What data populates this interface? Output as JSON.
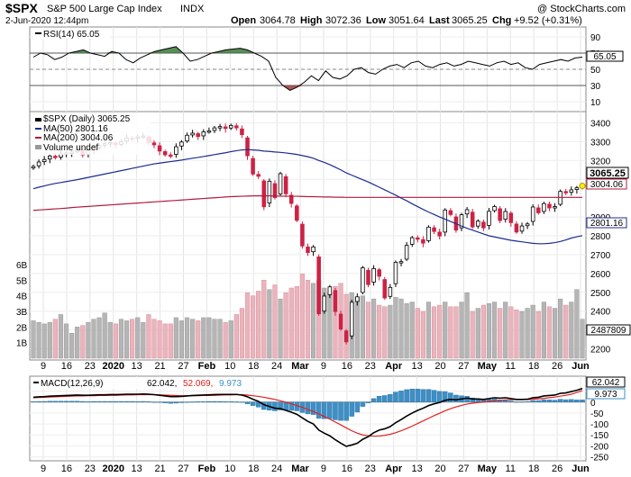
{
  "header": {
    "symbol": "$SPX",
    "name": "S&P 500 Large Cap Index",
    "exchange": "INDX",
    "watermark": "@ StockCharts.com",
    "datetime": "2-Jun-2020 12:44pm",
    "open_label": "Open",
    "open": "3064.78",
    "high_label": "High",
    "high": "3072.36",
    "low_label": "Low",
    "low": "3051.64",
    "last_label": "Last",
    "last": "3065.25",
    "chg_label": "Chg",
    "chg": "+9.52 (+0.31%)"
  },
  "colors": {
    "up": "#000000",
    "down": "#cc2244",
    "ma50": "#1a2c8f",
    "ma200": "#b01c3c",
    "macd": "#000000",
    "signal": "#e02020",
    "hist": "#3d8fc6",
    "rsi_above": "#3a7a3a",
    "rsi_below": "#9a3b3b"
  },
  "chart_data": [
    {
      "type": "line",
      "title": "RSI(14) 65.05",
      "legend": [
        {
          "label": "RSI(14) 65.05"
        }
      ],
      "ylim": [
        0,
        100
      ],
      "yticks": [
        90,
        70,
        50,
        30,
        10
      ],
      "levels": [
        70,
        50,
        30
      ],
      "last_value": "65.05",
      "series": [
        {
          "name": "RSI(14)",
          "values": [
            65,
            70,
            68,
            62,
            65,
            70,
            72,
            74,
            70,
            68,
            66,
            72,
            70,
            62,
            58,
            64,
            68,
            72,
            74,
            76,
            78,
            70,
            60,
            62,
            66,
            70,
            72,
            74,
            75,
            76,
            74,
            70,
            66,
            60,
            40,
            30,
            24,
            28,
            34,
            42,
            36,
            48,
            40,
            38,
            42,
            50,
            52,
            46,
            44,
            50,
            54,
            56,
            52,
            58,
            60,
            54,
            52,
            56,
            58,
            54,
            56,
            60,
            58,
            56,
            54,
            58,
            60,
            56,
            58,
            52,
            50,
            56,
            58,
            60,
            62,
            60,
            64,
            65
          ]
        }
      ]
    },
    {
      "type": "candlestick",
      "title": "$SPX (Daily) 3065.25",
      "legend": [
        {
          "label": "$SPX (Daily) 3065.25"
        },
        {
          "label": "MA(50) 2801.16"
        },
        {
          "label": "MA(200) 3004.06"
        },
        {
          "label": "Volume undef"
        }
      ],
      "ylim": [
        2150,
        3450
      ],
      "yticks": [
        3400,
        3300,
        3200,
        3100,
        2900,
        2800,
        2700,
        2600,
        2500,
        2400,
        2300,
        2200
      ],
      "volume_ticks": [
        "6B",
        "5B",
        "4B",
        "3B",
        "2B",
        "1B"
      ],
      "volume_scale": [
        0,
        7.5
      ],
      "x_tick_labels": [
        "9",
        "16",
        "23",
        "2020",
        "13",
        "21",
        "27",
        "Feb",
        "10",
        "18",
        "24",
        "Mar",
        "9",
        "16",
        "23",
        "Apr",
        "13",
        "20",
        "27",
        "May",
        "11",
        "18",
        "26",
        "Jun"
      ],
      "last_price": "3065.25",
      "ma200_last": "3004.06",
      "ma50_last": "2801.16",
      "volume_last": "2487809",
      "series": [
        {
          "name": "Close",
          "values": [
            3168,
            3192,
            3205,
            3224,
            3215,
            3235,
            3240,
            3245,
            3258,
            3230,
            3255,
            3265,
            3280,
            3289,
            3295,
            3283,
            3300,
            3320,
            3316,
            3325,
            3330,
            3295,
            3283,
            3250,
            3230,
            3225,
            3273,
            3298,
            3334,
            3345,
            3327,
            3352,
            3357,
            3373,
            3380,
            3370,
            3386,
            3373,
            3337,
            3225,
            3128,
            3116,
            2954,
            3090,
            3003,
            3130,
            3023,
            2972,
            2882,
            2746,
            2711,
            2741,
            2386,
            2480,
            2529,
            2398,
            2305,
            2237,
            2447,
            2476,
            2630,
            2541,
            2626,
            2585,
            2470,
            2526,
            2659,
            2663,
            2749,
            2790,
            2783,
            2761,
            2846,
            2823,
            2799,
            2937,
            2913,
            2830,
            2912,
            2939,
            2847,
            2878,
            2842,
            2930,
            2955,
            2881,
            2929,
            2870,
            2820,
            2852,
            2863,
            2953,
            2922,
            2971,
            2948,
            2955,
            3036,
            3029,
            3044,
            3055,
            3065
          ]
        },
        {
          "name": "MA(50)",
          "values": [
            3050,
            3058,
            3065,
            3072,
            3078,
            3083,
            3088,
            3093,
            3098,
            3104,
            3110,
            3116,
            3122,
            3128,
            3134,
            3140,
            3146,
            3152,
            3158,
            3164,
            3170,
            3176,
            3182,
            3186,
            3190,
            3194,
            3198,
            3202,
            3207,
            3212,
            3216,
            3221,
            3226,
            3231,
            3236,
            3241,
            3247,
            3252,
            3256,
            3258,
            3256,
            3254,
            3250,
            3248,
            3245,
            3243,
            3240,
            3236,
            3232,
            3226,
            3220,
            3212,
            3200,
            3190,
            3178,
            3164,
            3150,
            3134,
            3122,
            3110,
            3098,
            3086,
            3072,
            3058,
            3044,
            3030,
            3016,
            3000,
            2986,
            2970,
            2955,
            2940,
            2926,
            2913,
            2900,
            2888,
            2876,
            2864,
            2852,
            2840,
            2830,
            2820,
            2810,
            2800,
            2794,
            2788,
            2782,
            2776,
            2772,
            2768,
            2764,
            2760,
            2758,
            2758,
            2760,
            2764,
            2770,
            2778,
            2788,
            2795,
            2801
          ]
        },
        {
          "name": "MA(200)",
          "values": [
            2935,
            2937,
            2939,
            2941,
            2943,
            2945,
            2947,
            2950,
            2952,
            2954,
            2956,
            2958,
            2960,
            2962,
            2964,
            2966,
            2968,
            2970,
            2972,
            2974,
            2976,
            2978,
            2980,
            2982,
            2984,
            2986,
            2988,
            2990,
            2992,
            2994,
            2996,
            2998,
            3000,
            3002,
            3004,
            3006,
            3008,
            3009,
            3010,
            3011,
            3012,
            3012,
            3012,
            3012,
            3011,
            3011,
            3010,
            3010,
            3010,
            3009,
            3008,
            3008,
            3007,
            3006,
            3006,
            3005,
            3005,
            3004,
            3004,
            3004,
            3004,
            3004,
            3004,
            3004,
            3004,
            3004,
            3004,
            3004,
            3004,
            3004,
            3004,
            3004,
            3004,
            3004,
            3004,
            3004,
            3004,
            3004,
            3004,
            3004,
            3004,
            3004,
            3004,
            3004,
            3004,
            3004,
            3004,
            3004,
            3004,
            3004,
            3004,
            3004,
            3004,
            3004,
            3004,
            3004,
            3004,
            3004,
            3004,
            3004,
            3004
          ]
        },
        {
          "name": "Volume (B)",
          "values": [
            2.4,
            2.3,
            2.2,
            2.3,
            2.5,
            2.8,
            2.2,
            1.6,
            2.0,
            2.1,
            2.3,
            2.5,
            2.6,
            2.9,
            2.3,
            2.2,
            2.5,
            2.4,
            2.5,
            2.6,
            2.3,
            2.8,
            2.5,
            2.4,
            2.2,
            2.2,
            2.6,
            2.4,
            2.6,
            2.5,
            2.4,
            2.6,
            2.6,
            2.5,
            2.5,
            2.3,
            2.4,
            2.8,
            3.2,
            4.2,
            4.0,
            4.3,
            5.0,
            4.4,
            4.7,
            3.8,
            4.2,
            4.5,
            4.6,
            5.4,
            5.0,
            4.8,
            5.0,
            4.5,
            4.2,
            4.6,
            4.8,
            4.1,
            4.2,
            3.9,
            4.0,
            3.6,
            3.8,
            3.4,
            3.3,
            3.4,
            3.9,
            3.8,
            3.5,
            3.6,
            3.2,
            3.0,
            3.6,
            3.3,
            3.4,
            3.6,
            3.3,
            3.3,
            3.6,
            4.2,
            3.0,
            3.2,
            3.4,
            3.5,
            3.6,
            3.2,
            3.6,
            3.3,
            3.1,
            3.0,
            3.2,
            3.4,
            3.0,
            3.6,
            3.3,
            3.2,
            3.8,
            3.4,
            3.6,
            4.4,
            2.5
          ]
        }
      ]
    },
    {
      "type": "line",
      "title": "MACD(12,26,9) 62.042, 52.069, 9.973",
      "legend": [
        {
          "label": "MACD(12,26,9)"
        },
        {
          "label": "62.042,"
        },
        {
          "label": "52.069,"
        },
        {
          "label": "9.973"
        }
      ],
      "ylim": [
        -260,
        110
      ],
      "yticks": [
        50,
        0,
        -50,
        -100,
        -150,
        -200,
        -250
      ],
      "macd_last": "62.042",
      "signal_last": "52.069",
      "hist_last": "9.973",
      "series": [
        {
          "name": "MACD",
          "values": [
            22,
            24,
            25,
            27,
            28,
            29,
            30,
            31,
            32,
            31,
            31,
            32,
            33,
            33,
            34,
            34,
            35,
            36,
            36,
            36,
            37,
            36,
            34,
            31,
            28,
            25,
            25,
            26,
            28,
            30,
            31,
            32,
            33,
            34,
            35,
            35,
            35,
            35,
            32,
            24,
            13,
            3,
            -12,
            -20,
            -28,
            -30,
            -38,
            -46,
            -56,
            -72,
            -88,
            -100,
            -128,
            -142,
            -154,
            -172,
            -188,
            -202,
            -196,
            -188,
            -170,
            -158,
            -140,
            -128,
            -122,
            -112,
            -94,
            -80,
            -64,
            -50,
            -38,
            -28,
            -16,
            -8,
            -2,
            8,
            12,
            10,
            14,
            18,
            14,
            14,
            12,
            16,
            20,
            18,
            20,
            16,
            12,
            12,
            13,
            20,
            22,
            28,
            30,
            32,
            40,
            42,
            48,
            54,
            62
          ]
        },
        {
          "name": "Signal",
          "values": [
            20,
            21,
            22,
            23,
            24,
            25,
            26,
            27,
            28,
            28,
            29,
            29,
            30,
            30,
            31,
            31,
            32,
            33,
            33,
            34,
            34,
            34,
            34,
            33,
            32,
            31,
            30,
            29,
            29,
            29,
            29,
            30,
            30,
            31,
            32,
            33,
            33,
            34,
            34,
            32,
            29,
            26,
            22,
            17,
            12,
            6,
            -1,
            -8,
            -16,
            -24,
            -34,
            -43,
            -54,
            -66,
            -78,
            -91,
            -104,
            -118,
            -131,
            -142,
            -150,
            -154,
            -156,
            -155,
            -152,
            -147,
            -140,
            -131,
            -121,
            -110,
            -98,
            -86,
            -74,
            -62,
            -51,
            -40,
            -30,
            -22,
            -15,
            -9,
            -5,
            -2,
            0,
            3,
            6,
            8,
            10,
            11,
            11,
            11,
            11,
            13,
            15,
            17,
            20,
            23,
            27,
            31,
            36,
            44,
            52
          ]
        },
        {
          "name": "Histogram",
          "values": [
            2,
            3,
            3,
            4,
            4,
            4,
            4,
            4,
            4,
            3,
            2,
            3,
            3,
            3,
            3,
            3,
            3,
            3,
            3,
            2,
            3,
            2,
            0,
            -2,
            -4,
            -6,
            -5,
            -3,
            -1,
            1,
            2,
            2,
            3,
            3,
            3,
            2,
            2,
            1,
            -2,
            -8,
            -16,
            -23,
            -34,
            -37,
            -40,
            -36,
            -37,
            -38,
            -40,
            -48,
            -54,
            -57,
            -74,
            -76,
            -76,
            -81,
            -84,
            -84,
            -65,
            -46,
            -20,
            -4,
            16,
            27,
            30,
            35,
            46,
            51,
            57,
            60,
            60,
            58,
            58,
            54,
            49,
            48,
            42,
            32,
            29,
            27,
            19,
            16,
            12,
            13,
            14,
            10,
            10,
            5,
            1,
            1,
            2,
            7,
            7,
            11,
            10,
            9,
            13,
            11,
            12,
            10,
            10
          ]
        }
      ]
    }
  ]
}
